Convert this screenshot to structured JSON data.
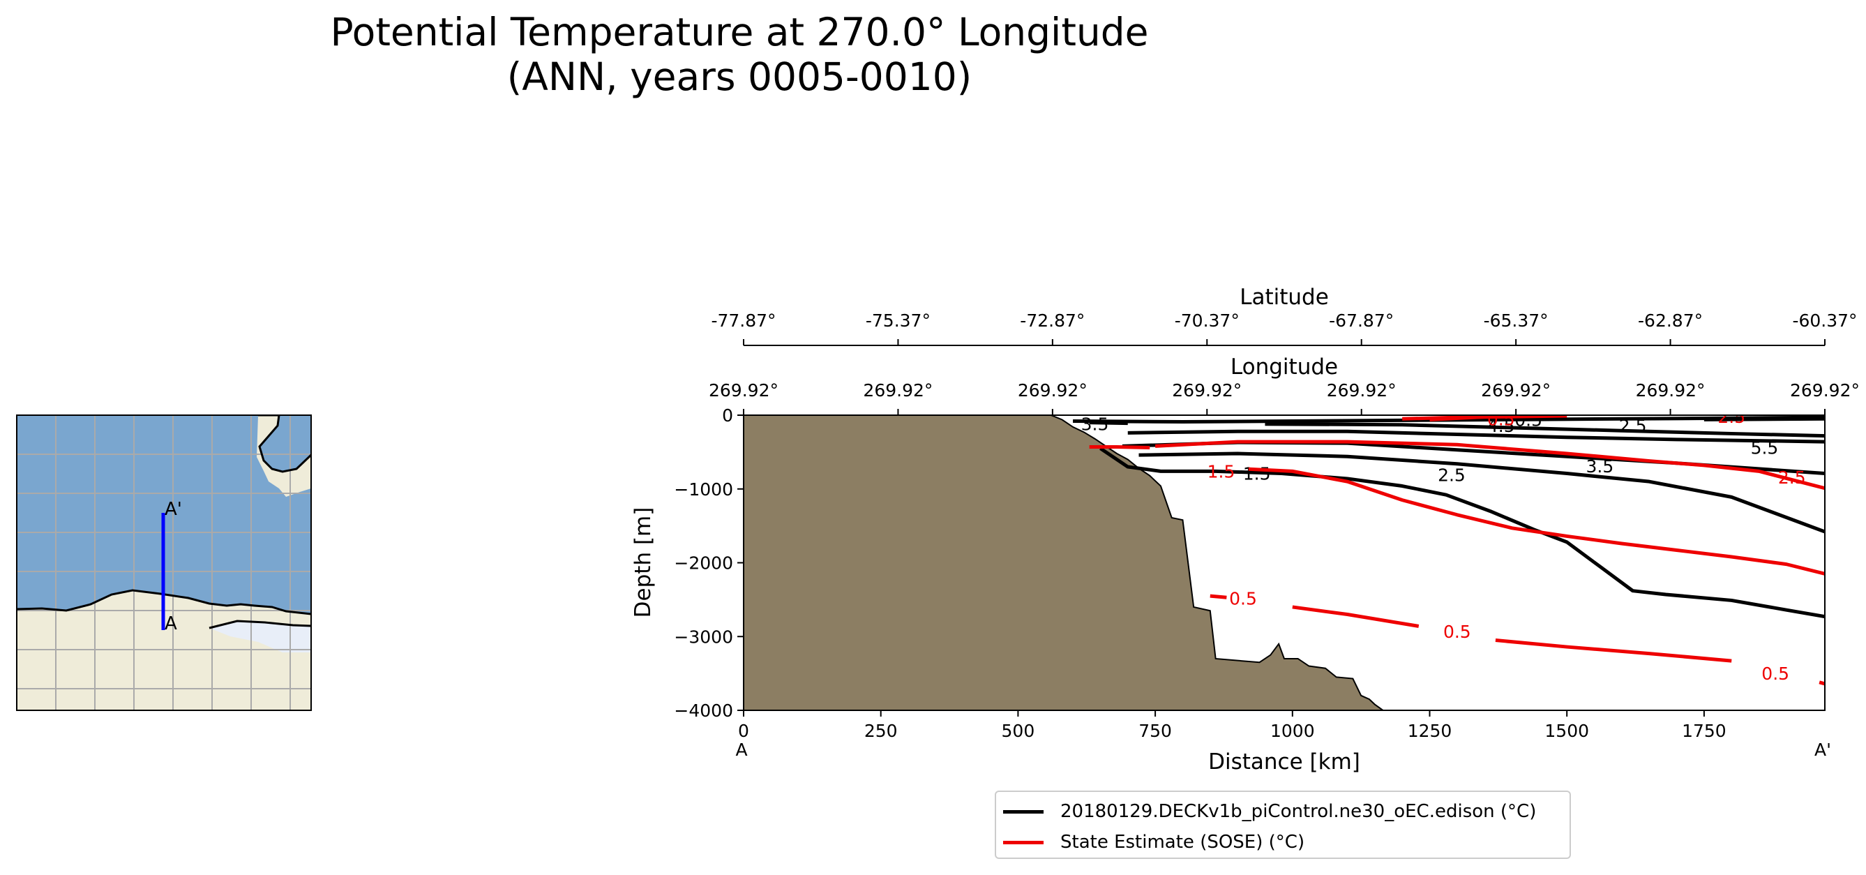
{
  "title": {
    "line1": "Potential Temperature at 270.0° Longitude",
    "line2": "(ANN, years 0005-0010)"
  },
  "colors": {
    "model": "#000000",
    "obs": "#ee0000",
    "land_section": "#8c7e63",
    "ocean_map": "#7aa6cf",
    "land_map": "#efecd9",
    "ice_map": "#e8eef8",
    "transect": "#0000ff"
  },
  "map": {
    "start_label": "A",
    "end_label": "A'"
  },
  "chart_data": {
    "type": "line",
    "subtype": "contour-section",
    "xlabel": "Distance [km]",
    "ylabel": "Depth [m]",
    "xlim": [
      0,
      1970
    ],
    "ylim": [
      -4000,
      0
    ],
    "x_ticks": [
      0,
      250,
      500,
      750,
      1000,
      1250,
      1500,
      1750
    ],
    "y_ticks": [
      0,
      -1000,
      -2000,
      -3000,
      -4000
    ],
    "y_tick_labels": [
      "0",
      "−1000",
      "−2000",
      "−3000",
      "−4000"
    ],
    "x_end_labels": {
      "start": "A",
      "end": "A'"
    },
    "latitude_axis": {
      "label": "Latitude",
      "ticks": [
        "-77.87°",
        "-75.37°",
        "-72.87°",
        "-70.37°",
        "-67.87°",
        "-65.37°",
        "-62.87°",
        "-60.37°"
      ]
    },
    "longitude_axis": {
      "label": "Longitude",
      "ticks": [
        "269.92°",
        "269.92°",
        "269.92°",
        "269.92°",
        "269.92°",
        "269.92°",
        "269.92°",
        "269.92°"
      ]
    },
    "bathymetry": [
      [
        0,
        0
      ],
      [
        560,
        0
      ],
      [
        580,
        -60
      ],
      [
        600,
        -160
      ],
      [
        620,
        -230
      ],
      [
        640,
        -320
      ],
      [
        660,
        -420
      ],
      [
        680,
        -520
      ],
      [
        700,
        -600
      ],
      [
        720,
        -720
      ],
      [
        740,
        -820
      ],
      [
        760,
        -960
      ],
      [
        780,
        -1390
      ],
      [
        800,
        -1420
      ],
      [
        820,
        -2600
      ],
      [
        850,
        -2650
      ],
      [
        860,
        -3300
      ],
      [
        940,
        -3350
      ],
      [
        960,
        -3250
      ],
      [
        975,
        -3100
      ],
      [
        985,
        -3300
      ],
      [
        1010,
        -3300
      ],
      [
        1030,
        -3400
      ],
      [
        1060,
        -3430
      ],
      [
        1080,
        -3550
      ],
      [
        1110,
        -3570
      ],
      [
        1125,
        -3800
      ],
      [
        1140,
        -3850
      ],
      [
        1150,
        -3920
      ],
      [
        1165,
        -4000
      ]
    ],
    "series": [
      {
        "name": "20180129.DECKv1b_piControl.ne30_oEC.edison (°C)",
        "color": "#000000",
        "contours": [
          {
            "level": "0.5",
            "points": [
              [
                600,
                -80
              ],
              [
                800,
                -90
              ],
              [
                1000,
                -80
              ],
              [
                1200,
                -70
              ],
              [
                1400,
                -60
              ],
              [
                1600,
                -50
              ],
              [
                1800,
                -40
              ],
              [
                1970,
                -30
              ]
            ],
            "label_at": [
              1430,
              -60
            ]
          },
          {
            "level": "1.5",
            "points": [
              [
                650,
                -450
              ],
              [
                700,
                -700
              ],
              [
                760,
                -760
              ],
              [
                860,
                -760
              ],
              [
                980,
                -790
              ],
              [
                1100,
                -860
              ],
              [
                1200,
                -960
              ],
              [
                1280,
                -1080
              ],
              [
                1360,
                -1300
              ],
              [
                1440,
                -1550
              ],
              [
                1500,
                -1720
              ],
              [
                1560,
                -2050
              ],
              [
                1620,
                -2380
              ],
              [
                1680,
                -2430
              ],
              [
                1800,
                -2510
              ],
              [
                1900,
                -2640
              ],
              [
                1970,
                -2730
              ]
            ],
            "label_at": [
              935,
              -790
            ]
          },
          {
            "level": "2.5",
            "points": [
              [
                720,
                -540
              ],
              [
                900,
                -520
              ],
              [
                1100,
                -560
              ],
              [
                1300,
                -660
              ],
              [
                1500,
                -790
              ],
              [
                1650,
                -900
              ],
              [
                1800,
                -1110
              ],
              [
                1970,
                -1580
              ]
            ],
            "label_at": [
              1290,
              -810
            ]
          },
          {
            "level": "3.5",
            "points": [
              [
                690,
                -420
              ],
              [
                900,
                -370
              ],
              [
                1100,
                -380
              ],
              [
                1300,
                -470
              ],
              [
                1500,
                -560
              ],
              [
                1700,
                -650
              ],
              [
                1970,
                -790
              ]
            ],
            "label_at": [
              1560,
              -690
            ]
          },
          {
            "level": "4.5",
            "points": [
              [
                700,
                -240
              ],
              [
                900,
                -220
              ],
              [
                1100,
                -220
              ],
              [
                1300,
                -260
              ],
              [
                1500,
                -300
              ],
              [
                1700,
                -330
              ],
              [
                1970,
                -360
              ]
            ],
            "label_at": [
              1380,
              -140
            ]
          },
          {
            "level": "5.5",
            "points": [
              [
                950,
                -120
              ],
              [
                1200,
                -130
              ],
              [
                1400,
                -170
              ],
              [
                1600,
                -210
              ],
              [
                1800,
                -250
              ],
              [
                1970,
                -280
              ]
            ],
            "label_at": [
              1860,
              -440
            ]
          },
          {
            "level": "2.5",
            "points": [
              [
                1750,
                -60
              ],
              [
                1970,
                -50
              ]
            ],
            "label_at": [
              1620,
              -140
            ]
          },
          {
            "level": "3.5",
            "points": [
              [
                630,
                -100
              ],
              [
                700,
                -110
              ]
            ],
            "label_at": [
              640,
              -120
            ]
          }
        ]
      },
      {
        "name": "State Estimate (SOSE) (°C)",
        "color": "#ee0000",
        "contours": [
          {
            "level": "0.5",
            "points": [
              [
                850,
                -2450
              ],
              [
                880,
                -2470
              ]
            ],
            "label_at": [
              910,
              -2480
            ]
          },
          {
            "level": "0.5",
            "points": [
              [
                1000,
                -2600
              ],
              [
                1100,
                -2700
              ],
              [
                1230,
                -2860
              ]
            ],
            "label_at": [
              1300,
              -2930
            ]
          },
          {
            "level": "0.5",
            "points": [
              [
                1370,
                -3050
              ],
              [
                1500,
                -3140
              ],
              [
                1650,
                -3230
              ],
              [
                1800,
                -3330
              ]
            ],
            "label_at": [
              1880,
              -3500
            ]
          },
          {
            "level": "0.5",
            "points": [
              [
                1960,
                -3620
              ],
              [
                1970,
                -3640
              ]
            ],
            "label_at": null
          },
          {
            "level": "1.5",
            "points": [
              [
                630,
                -430
              ],
              [
                680,
                -430
              ],
              [
                740,
                -440
              ]
            ],
            "label_at": [
              870,
              -760
            ]
          },
          {
            "level": "1.5",
            "points": [
              [
                920,
                -730
              ],
              [
                1000,
                -760
              ],
              [
                1100,
                -900
              ],
              [
                1200,
                -1150
              ],
              [
                1300,
                -1350
              ],
              [
                1400,
                -1530
              ],
              [
                1500,
                -1640
              ],
              [
                1600,
                -1740
              ],
              [
                1700,
                -1830
              ],
              [
                1800,
                -1920
              ],
              [
                1900,
                -2020
              ],
              [
                1970,
                -2150
              ]
            ],
            "label_at": null
          },
          {
            "level": "2.5",
            "points": [
              [
                750,
                -420
              ],
              [
                900,
                -360
              ],
              [
                1100,
                -360
              ],
              [
                1300,
                -400
              ],
              [
                1500,
                -520
              ],
              [
                1650,
                -620
              ],
              [
                1750,
                -680
              ],
              [
                1850,
                -760
              ],
              [
                1970,
                -990
              ]
            ],
            "label_at": [
              1910,
              -840
            ]
          },
          {
            "level": "2.5",
            "points": [
              [
                1200,
                -50
              ],
              [
                1300,
                -30
              ],
              [
                1400,
                -20
              ],
              [
                1500,
                -10
              ]
            ],
            "label_at": [
              1800,
              -20
            ]
          },
          {
            "level": "0.5",
            "points": [
              [
                1250,
                -60
              ],
              [
                1360,
                -20
              ]
            ],
            "label_at": [
              1380,
              -50
            ]
          }
        ]
      }
    ]
  },
  "legend": {
    "entries": [
      "20180129.DECKv1b_piControl.ne30_oEC.edison (°C)",
      "State Estimate (SOSE) (°C)"
    ]
  }
}
